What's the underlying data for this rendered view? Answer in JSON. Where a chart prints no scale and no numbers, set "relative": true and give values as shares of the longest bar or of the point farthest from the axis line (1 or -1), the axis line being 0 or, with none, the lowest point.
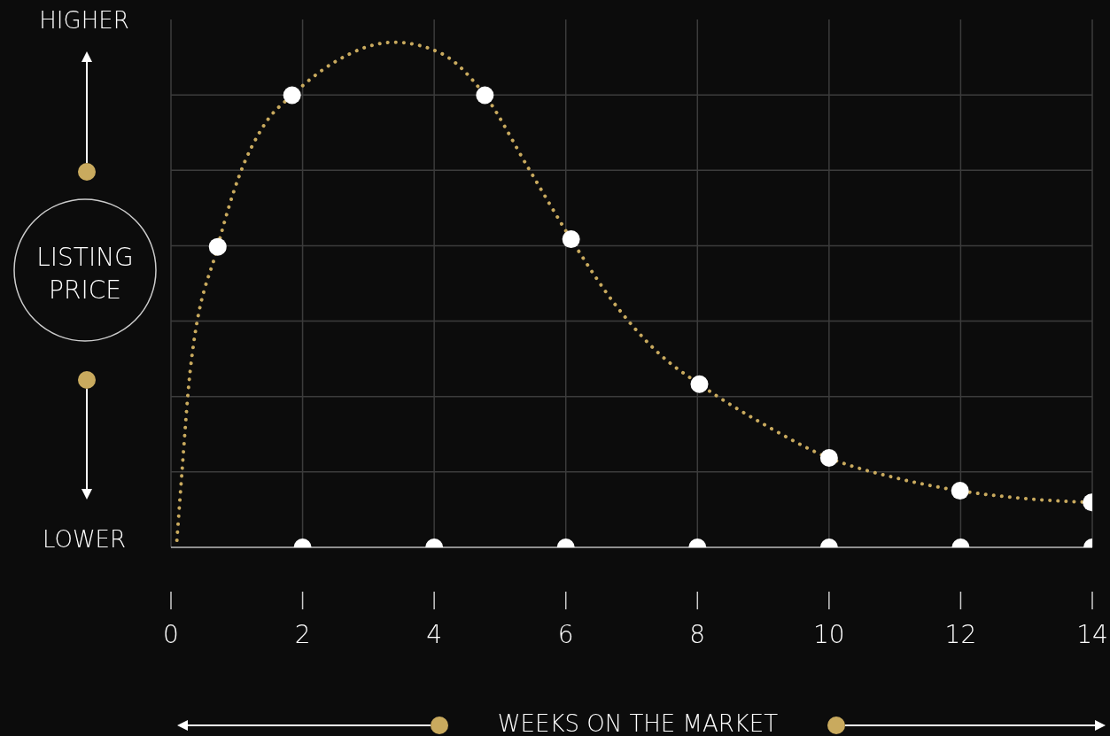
{
  "chart_data": {
    "type": "line",
    "xlabel": "WEEKS ON THE MARKET",
    "ylabel": "LISTING PRICE",
    "annotations": [
      "HIGHER",
      "LOWER"
    ],
    "relative": true,
    "xlim": [
      0,
      14
    ],
    "xticks": [
      0,
      2,
      4,
      6,
      8,
      10,
      12,
      14
    ],
    "grid": true,
    "series": [
      {
        "type": "line",
        "color": "#c9aa5e",
        "line_style": "dotted",
        "marker": "none",
        "x": [
          0.09,
          0.16,
          0.29,
          0.71,
          1.03,
          1.43,
          1.84,
          2.49,
          3.39,
          4.09,
          4.77,
          5.43,
          6.08,
          6.76,
          7.43,
          8.03,
          9.03,
          10.0,
          11.03,
          11.99,
          13.03,
          13.99
        ],
        "values": [
          0.014,
          0.137,
          0.347,
          0.595,
          0.733,
          0.839,
          0.895,
          0.961,
          1.0,
          0.979,
          0.895,
          0.751,
          0.61,
          0.479,
          0.382,
          0.323,
          0.242,
          0.177,
          0.137,
          0.112,
          0.096,
          0.089
        ]
      },
      {
        "type": "scatter",
        "color": "#ffffff",
        "marker": "circle",
        "x": [
          0.71,
          1.84,
          4.77,
          6.08,
          8.03,
          10.0,
          11.99,
          13.99
        ],
        "values": [
          0.595,
          0.895,
          0.895,
          0.61,
          0.323,
          0.177,
          0.112,
          0.089
        ]
      },
      {
        "type": "scatter",
        "color": "#ffffff",
        "marker": "circle",
        "x": [
          2,
          4,
          6,
          8,
          10,
          12,
          14
        ],
        "values": [
          0,
          0,
          0,
          0,
          0,
          0,
          0
        ]
      }
    ]
  }
}
